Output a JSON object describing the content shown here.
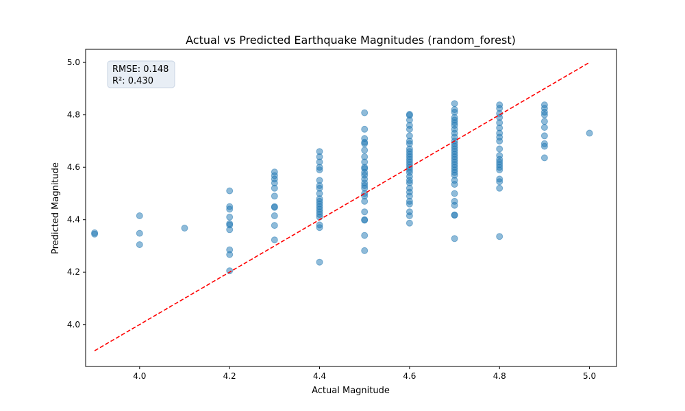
{
  "chart_data": {
    "type": "scatter",
    "title": "Actual vs Predicted Earthquake Magnitudes (random_forest)",
    "xlabel": "Actual Magnitude",
    "ylabel": "Predicted Magnitude",
    "xlim": [
      3.88,
      5.06
    ],
    "ylim": [
      3.84,
      5.05
    ],
    "xticks": [
      "4.0",
      "4.2",
      "4.4",
      "4.6",
      "4.8",
      "5.0"
    ],
    "yticks": [
      "4.0",
      "4.2",
      "4.4",
      "4.6",
      "4.8",
      "5.0"
    ],
    "grid": false,
    "annotation": {
      "rmse": "RMSE: 0.148",
      "r2": "R²: 0.430"
    },
    "reference_line": {
      "x": [
        3.9,
        5.0
      ],
      "y": [
        3.9,
        5.0
      ],
      "color": "#ff0000",
      "style": "dashed"
    },
    "point_color": "#1f77b4",
    "points": [
      [
        3.9,
        4.345
      ],
      [
        3.9,
        4.35
      ],
      [
        4.0,
        4.415
      ],
      [
        4.0,
        4.348
      ],
      [
        4.0,
        4.305
      ],
      [
        4.1,
        4.368
      ],
      [
        4.2,
        4.51
      ],
      [
        4.2,
        4.45
      ],
      [
        4.2,
        4.44
      ],
      [
        4.2,
        4.41
      ],
      [
        4.2,
        4.385
      ],
      [
        4.2,
        4.38
      ],
      [
        4.2,
        4.362
      ],
      [
        4.2,
        4.285
      ],
      [
        4.2,
        4.267
      ],
      [
        4.2,
        4.205
      ],
      [
        4.3,
        4.582
      ],
      [
        4.3,
        4.568
      ],
      [
        4.3,
        4.555
      ],
      [
        4.3,
        4.54
      ],
      [
        4.3,
        4.52
      ],
      [
        4.3,
        4.49
      ],
      [
        4.3,
        4.45
      ],
      [
        4.3,
        4.447
      ],
      [
        4.3,
        4.415
      ],
      [
        4.3,
        4.378
      ],
      [
        4.3,
        4.323
      ],
      [
        4.4,
        4.66
      ],
      [
        4.4,
        4.64
      ],
      [
        4.4,
        4.62
      ],
      [
        4.4,
        4.6
      ],
      [
        4.4,
        4.59
      ],
      [
        4.4,
        4.55
      ],
      [
        4.4,
        4.53
      ],
      [
        4.4,
        4.52
      ],
      [
        4.4,
        4.5
      ],
      [
        4.4,
        4.48
      ],
      [
        4.4,
        4.47
      ],
      [
        4.4,
        4.46
      ],
      [
        4.4,
        4.45
      ],
      [
        4.4,
        4.44
      ],
      [
        4.4,
        4.43
      ],
      [
        4.4,
        4.42
      ],
      [
        4.4,
        4.41
      ],
      [
        4.4,
        4.38
      ],
      [
        4.4,
        4.37
      ],
      [
        4.4,
        4.238
      ],
      [
        4.5,
        4.808
      ],
      [
        4.5,
        4.745
      ],
      [
        4.5,
        4.71
      ],
      [
        4.5,
        4.695
      ],
      [
        4.5,
        4.69
      ],
      [
        4.5,
        4.665
      ],
      [
        4.5,
        4.64
      ],
      [
        4.5,
        4.62
      ],
      [
        4.5,
        4.6
      ],
      [
        4.5,
        4.595
      ],
      [
        4.5,
        4.58
      ],
      [
        4.5,
        4.57
      ],
      [
        4.5,
        4.555
      ],
      [
        4.5,
        4.54
      ],
      [
        4.5,
        4.53
      ],
      [
        4.5,
        4.52
      ],
      [
        4.5,
        4.5
      ],
      [
        4.5,
        4.49
      ],
      [
        4.5,
        4.47
      ],
      [
        4.5,
        4.43
      ],
      [
        4.5,
        4.4
      ],
      [
        4.5,
        4.398
      ],
      [
        4.5,
        4.34
      ],
      [
        4.5,
        4.282
      ],
      [
        4.6,
        4.802
      ],
      [
        4.6,
        4.798
      ],
      [
        4.6,
        4.78
      ],
      [
        4.6,
        4.76
      ],
      [
        4.6,
        4.745
      ],
      [
        4.6,
        4.72
      ],
      [
        4.6,
        4.7
      ],
      [
        4.6,
        4.69
      ],
      [
        4.6,
        4.67
      ],
      [
        4.6,
        4.66
      ],
      [
        4.6,
        4.65
      ],
      [
        4.6,
        4.64
      ],
      [
        4.6,
        4.63
      ],
      [
        4.6,
        4.62
      ],
      [
        4.6,
        4.61
      ],
      [
        4.6,
        4.6
      ],
      [
        4.6,
        4.59
      ],
      [
        4.6,
        4.58
      ],
      [
        4.6,
        4.565
      ],
      [
        4.6,
        4.55
      ],
      [
        4.6,
        4.54
      ],
      [
        4.6,
        4.52
      ],
      [
        4.6,
        4.505
      ],
      [
        4.6,
        4.49
      ],
      [
        4.6,
        4.47
      ],
      [
        4.6,
        4.46
      ],
      [
        4.6,
        4.43
      ],
      [
        4.6,
        4.415
      ],
      [
        4.6,
        4.387
      ],
      [
        4.7,
        4.843
      ],
      [
        4.7,
        4.82
      ],
      [
        4.7,
        4.81
      ],
      [
        4.7,
        4.79
      ],
      [
        4.7,
        4.78
      ],
      [
        4.7,
        4.77
      ],
      [
        4.7,
        4.76
      ],
      [
        4.7,
        4.745
      ],
      [
        4.7,
        4.73
      ],
      [
        4.7,
        4.715
      ],
      [
        4.7,
        4.7
      ],
      [
        4.7,
        4.69
      ],
      [
        4.7,
        4.68
      ],
      [
        4.7,
        4.67
      ],
      [
        4.7,
        4.66
      ],
      [
        4.7,
        4.65
      ],
      [
        4.7,
        4.64
      ],
      [
        4.7,
        4.63
      ],
      [
        4.7,
        4.62
      ],
      [
        4.7,
        4.61
      ],
      [
        4.7,
        4.6
      ],
      [
        4.7,
        4.59
      ],
      [
        4.7,
        4.58
      ],
      [
        4.7,
        4.57
      ],
      [
        4.7,
        4.55
      ],
      [
        4.7,
        4.535
      ],
      [
        4.7,
        4.5
      ],
      [
        4.7,
        4.47
      ],
      [
        4.7,
        4.455
      ],
      [
        4.7,
        4.418
      ],
      [
        4.7,
        4.417
      ],
      [
        4.7,
        4.328
      ],
      [
        4.8,
        4.838
      ],
      [
        4.8,
        4.825
      ],
      [
        4.8,
        4.805
      ],
      [
        4.8,
        4.79
      ],
      [
        4.8,
        4.77
      ],
      [
        4.8,
        4.75
      ],
      [
        4.8,
        4.73
      ],
      [
        4.8,
        4.715
      ],
      [
        4.8,
        4.7
      ],
      [
        4.8,
        4.67
      ],
      [
        4.8,
        4.645
      ],
      [
        4.8,
        4.63
      ],
      [
        4.8,
        4.62
      ],
      [
        4.8,
        4.61
      ],
      [
        4.8,
        4.6
      ],
      [
        4.8,
        4.59
      ],
      [
        4.8,
        4.555
      ],
      [
        4.8,
        4.545
      ],
      [
        4.8,
        4.52
      ],
      [
        4.8,
        4.336
      ],
      [
        4.9,
        4.838
      ],
      [
        4.9,
        4.825
      ],
      [
        4.9,
        4.81
      ],
      [
        4.9,
        4.8
      ],
      [
        4.9,
        4.775
      ],
      [
        4.9,
        4.752
      ],
      [
        4.9,
        4.72
      ],
      [
        4.9,
        4.69
      ],
      [
        4.9,
        4.68
      ],
      [
        4.9,
        4.636
      ],
      [
        5.0,
        4.73
      ]
    ]
  }
}
